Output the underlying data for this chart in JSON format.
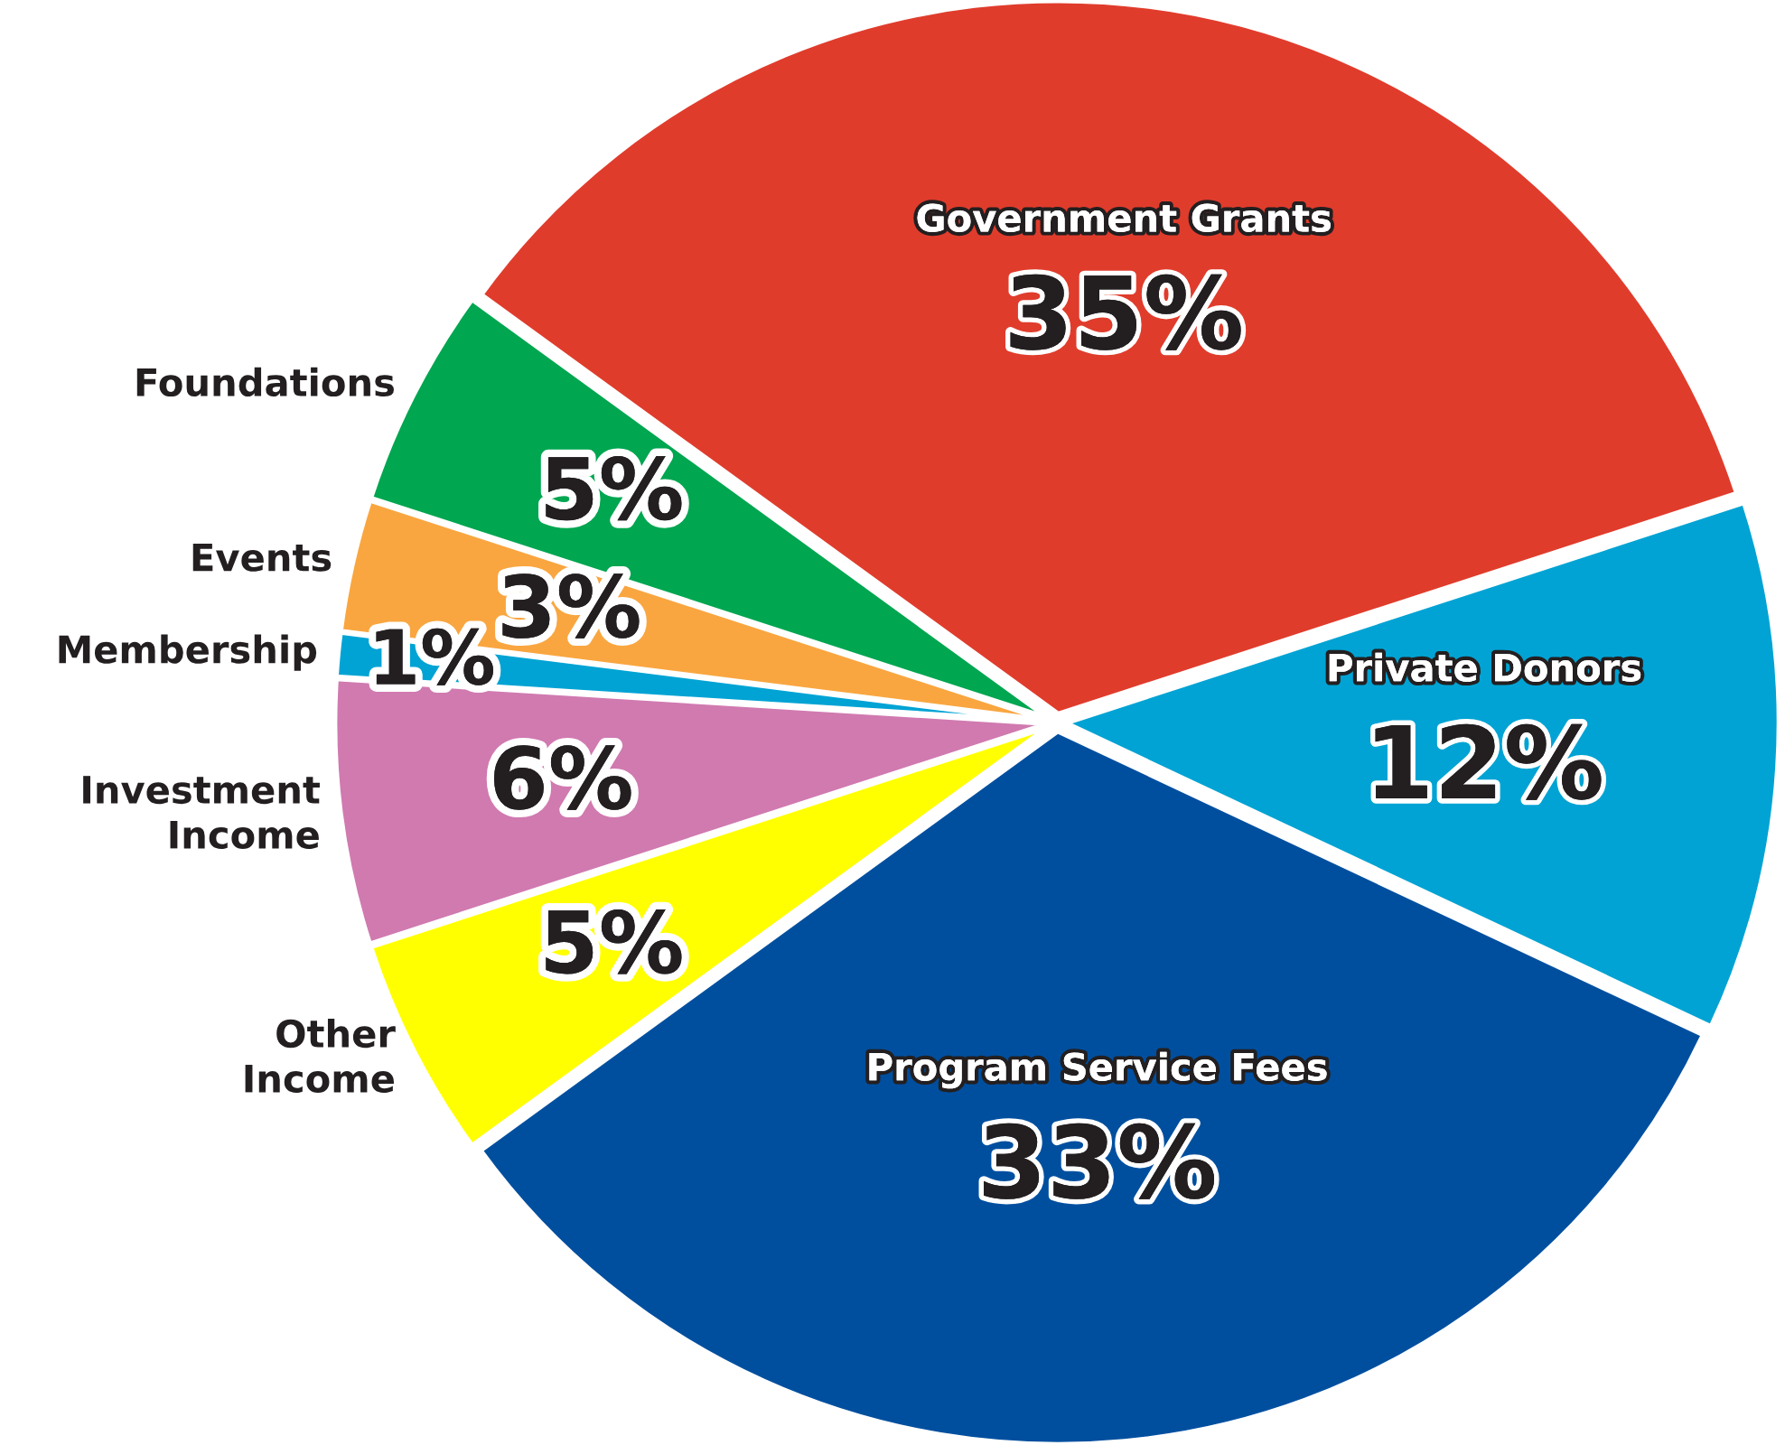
{
  "chart_data": {
    "type": "pie",
    "categories": [
      "Government Grants",
      "Private Donors",
      "Program Service Fees",
      "Other Income",
      "Investment Income",
      "Membership",
      "Events",
      "Foundations"
    ],
    "values": [
      35,
      12,
      33,
      5,
      6,
      1,
      3,
      5
    ],
    "value_labels": [
      "35%",
      "12%",
      "33%",
      "5%",
      "6%",
      "1%",
      "3%",
      "5%"
    ],
    "colors": [
      "#e03c2c",
      "#00a3d4",
      "#004f9f",
      "#ffff00",
      "#d07ab0",
      "#00a3d4",
      "#f9a640",
      "#00a650"
    ]
  }
}
